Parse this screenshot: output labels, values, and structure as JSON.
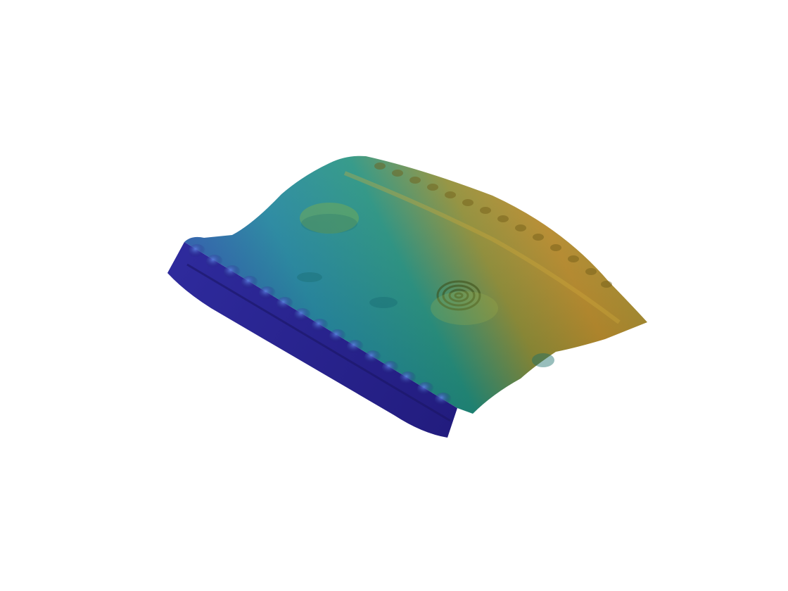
{
  "scene": {
    "background": "#ffffff",
    "object": "3d-surface-height-map",
    "colormap": "viridis-like",
    "colors": {
      "low": "#2b1c8a",
      "low_mid": "#2a5fb0",
      "mid": "#1f8c93",
      "high_mid": "#5f9a4a",
      "high": "#b18a2a",
      "peak": "#c7a636"
    }
  }
}
